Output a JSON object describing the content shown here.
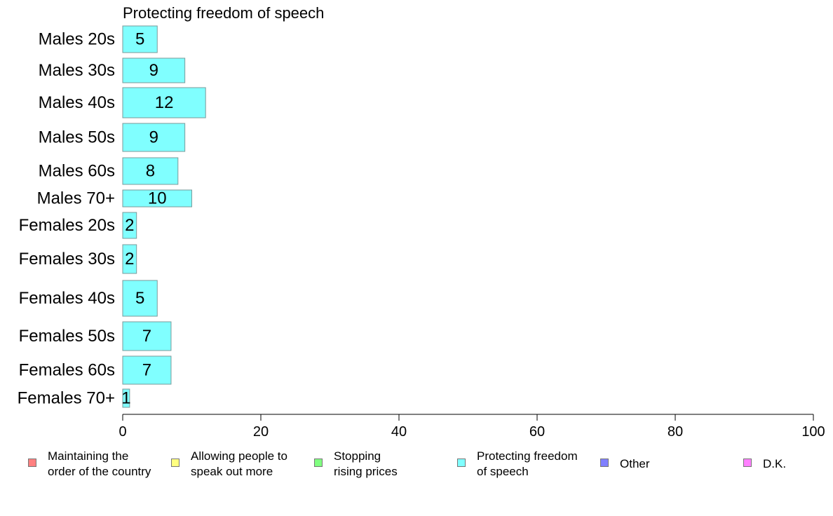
{
  "chart_data": {
    "type": "bar",
    "orientation": "horizontal",
    "title": "Protecting freedom of speech",
    "categories": [
      "Males 20s",
      "Males 30s",
      "Males 40s",
      "Males 50s",
      "Males 60s",
      "Males 70+",
      "Females 20s",
      "Females 30s",
      "Females 40s",
      "Females 50s",
      "Females 60s",
      "Females 70+"
    ],
    "values": [
      5,
      9,
      12,
      9,
      8,
      10,
      2,
      2,
      5,
      7,
      7,
      1
    ],
    "value_labels": [
      "5",
      "9",
      "12",
      "9",
      "8",
      "10",
      "2",
      "2",
      "5",
      "7",
      "7",
      "1"
    ],
    "series_color": "#80FFFF",
    "xlim": [
      0,
      100
    ],
    "xticks": [
      0,
      20,
      40,
      60,
      80,
      100
    ],
    "xtick_labels": [
      "0",
      "20",
      "40",
      "60",
      "80",
      "100"
    ],
    "grid": false,
    "legend_placement": "bottom",
    "legend": [
      {
        "label": "Maintaining the\norder of the country",
        "color": "#FF8080"
      },
      {
        "label": "Allowing people to\nspeak out more",
        "color": "#FFFF80"
      },
      {
        "label": "Stopping\nrising prices",
        "color": "#80FF80"
      },
      {
        "label": "Protecting freedom\nof speech",
        "color": "#80FFFF"
      },
      {
        "label": "Other",
        "color": "#8080FF"
      },
      {
        "label": "D.K.",
        "color": "#FF80FF"
      }
    ]
  }
}
